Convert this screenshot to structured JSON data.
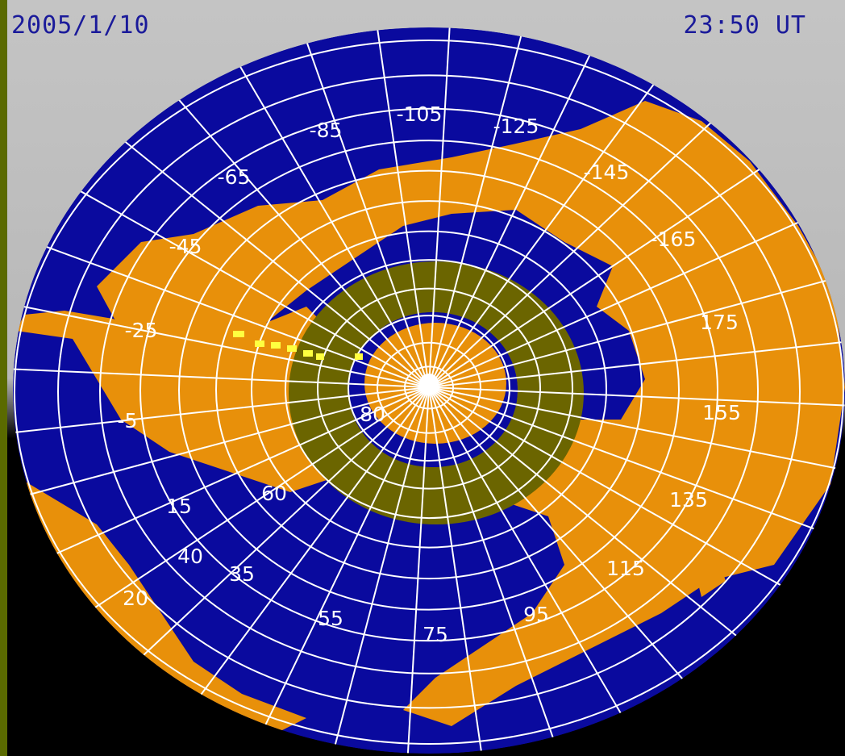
{
  "header": {
    "date": "2005/1/10",
    "time": "23:50 UT"
  },
  "map": {
    "projection": "polar azimuthal",
    "colors": {
      "ocean": "#0a0a9e",
      "land": "#e8900a",
      "grid": "#ffffff",
      "auroral_oval": "#6b6500",
      "observations": "#ffff40",
      "background_top": "#c0c0c0",
      "background_bottom": "#000000",
      "frame": "#5a6a00"
    },
    "longitude_labels": [
      "-105",
      "-125",
      "-145",
      "-165",
      "175",
      "155",
      "135",
      "115",
      "95",
      "75",
      "55",
      "35",
      "15",
      "-5",
      "-25",
      "-45",
      "-65",
      "-85"
    ],
    "latitude_labels": [
      "80",
      "60",
      "40",
      "20"
    ]
  }
}
